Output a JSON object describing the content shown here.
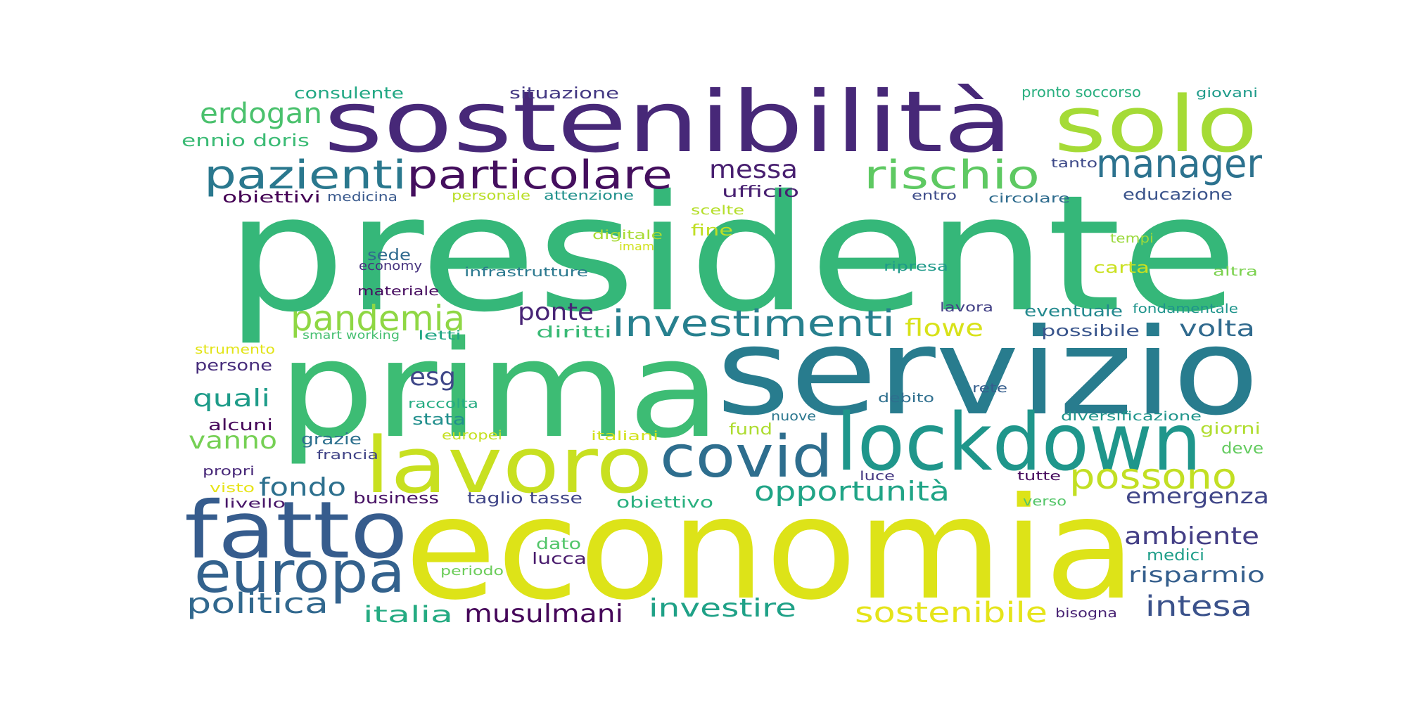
{
  "words": [
    {
      "text": "presidente",
      "color": "#35b779"
    },
    {
      "text": "prima",
      "color": "#3dbc74"
    },
    {
      "text": "economia",
      "color": "#dde318"
    },
    {
      "text": "servizio",
      "color": "#287c8e"
    },
    {
      "text": "sostenibilità",
      "color": "#472878"
    },
    {
      "text": "lockdown",
      "color": "#1f968b"
    },
    {
      "text": "lavoro",
      "color": "#c8e020"
    },
    {
      "text": "fatto",
      "color": "#365c8d"
    },
    {
      "text": "solo",
      "color": "#a5db36"
    },
    {
      "text": "europa",
      "color": "#33628d"
    },
    {
      "text": "covid",
      "color": "#2e6e8e"
    },
    {
      "text": "particolare",
      "color": "#440f5e"
    },
    {
      "text": "pazienti",
      "color": "#2a788e"
    },
    {
      "text": "rischio",
      "color": "#5ec962"
    },
    {
      "text": "manager",
      "color": "#2c728e"
    },
    {
      "text": "investimenti",
      "color": "#27808e"
    },
    {
      "text": "pandemia",
      "color": "#8fd744"
    },
    {
      "text": "possono",
      "color": "#c2df23"
    },
    {
      "text": "erdogan",
      "color": "#4ac16d"
    },
    {
      "text": "opportunità",
      "color": "#20a486"
    },
    {
      "text": "sostenibile",
      "color": "#e5e419"
    },
    {
      "text": "musulmani",
      "color": "#46075a"
    },
    {
      "text": "politica",
      "color": "#31688e"
    },
    {
      "text": "investire",
      "color": "#1fa187"
    },
    {
      "text": "intesa",
      "color": "#3b528b"
    },
    {
      "text": "italia",
      "color": "#25ab82"
    },
    {
      "text": "fondo",
      "color": "#2d708e"
    },
    {
      "text": "messa",
      "color": "#481f70"
    },
    {
      "text": "ponte",
      "color": "#482576"
    },
    {
      "text": "esg",
      "color": "#3f4788"
    },
    {
      "text": "quali",
      "color": "#1e9c89"
    },
    {
      "text": "vanno",
      "color": "#75d054"
    },
    {
      "text": "flowe",
      "color": "#d8e219"
    },
    {
      "text": "volta",
      "color": "#306a8e"
    },
    {
      "text": "emergenza",
      "color": "#404688"
    },
    {
      "text": "ambiente",
      "color": "#433e85"
    },
    {
      "text": "risparmio",
      "color": "#355f8d"
    },
    {
      "text": "consulente",
      "color": "#22a884"
    },
    {
      "text": "situazione",
      "color": "#443983"
    },
    {
      "text": "pronto soccorso",
      "color": "#29af7f"
    },
    {
      "text": "giovani",
      "color": "#1e9b8a"
    },
    {
      "text": "ennio doris",
      "color": "#3bbb75"
    },
    {
      "text": "obiettivi",
      "color": "#440154"
    },
    {
      "text": "medicina",
      "color": "#38588c"
    },
    {
      "text": "personale",
      "color": "#bade28"
    },
    {
      "text": "attenzione",
      "color": "#21918c"
    },
    {
      "text": "ufficio",
      "color": "#482071"
    },
    {
      "text": "tanto",
      "color": "#3e4a89"
    },
    {
      "text": "entro",
      "color": "#3e4c8a"
    },
    {
      "text": "circolare",
      "color": "#2f6c8e"
    },
    {
      "text": "educazione",
      "color": "#3a538b"
    },
    {
      "text": "scelte",
      "color": "#b5de2b"
    },
    {
      "text": "digitale",
      "color": "#a8db34"
    },
    {
      "text": "fine",
      "color": "#c0df25"
    },
    {
      "text": "imam",
      "color": "#d0e11c"
    },
    {
      "text": "tempi",
      "color": "#9bd93c"
    },
    {
      "text": "sede",
      "color": "#306a8e"
    },
    {
      "text": "economy",
      "color": "#46327e"
    },
    {
      "text": "infrastrutture",
      "color": "#2a788e"
    },
    {
      "text": "ripresa",
      "color": "#1f9a8a"
    },
    {
      "text": "carta",
      "color": "#cae11f"
    },
    {
      "text": "altra",
      "color": "#7cd250"
    },
    {
      "text": "materiale",
      "color": "#470d60"
    },
    {
      "text": "lavora",
      "color": "#424086"
    },
    {
      "text": "eventuale",
      "color": "#23898e"
    },
    {
      "text": "fondamentale",
      "color": "#1f948c"
    },
    {
      "text": "possibile",
      "color": "#39558c"
    },
    {
      "text": "diritti",
      "color": "#3aba76"
    },
    {
      "text": "smart working",
      "color": "#45bf70"
    },
    {
      "text": "letti",
      "color": "#22a785"
    },
    {
      "text": "strumento",
      "color": "#e2e418"
    },
    {
      "text": "persone",
      "color": "#472d7b"
    },
    {
      "text": "raccolta",
      "color": "#25ac82"
    },
    {
      "text": "debito",
      "color": "#2e6f8e"
    },
    {
      "text": "rete",
      "color": "#355e8d"
    },
    {
      "text": "stata",
      "color": "#218f8d"
    },
    {
      "text": "fund",
      "color": "#addc30"
    },
    {
      "text": "nuove",
      "color": "#2a768e"
    },
    {
      "text": "diversificazione",
      "color": "#1f958b"
    },
    {
      "text": "giorni",
      "color": "#b0dd2f"
    },
    {
      "text": "alcuni",
      "color": "#450559"
    },
    {
      "text": "grazie",
      "color": "#2d708e"
    },
    {
      "text": "europei",
      "color": "#c5e021"
    },
    {
      "text": "italiani",
      "color": "#d2e21b"
    },
    {
      "text": "francia",
      "color": "#414487"
    },
    {
      "text": "deve",
      "color": "#63cb5f"
    },
    {
      "text": "propri",
      "color": "#482979"
    },
    {
      "text": "visto",
      "color": "#e7e419"
    },
    {
      "text": "livello",
      "color": "#481769"
    },
    {
      "text": "business",
      "color": "#471164"
    },
    {
      "text": "taglio tasse",
      "color": "#404588"
    },
    {
      "text": "obiettivo",
      "color": "#2ab07f"
    },
    {
      "text": "luce",
      "color": "#453882"
    },
    {
      "text": "tutte",
      "color": "#460a5d"
    },
    {
      "text": "verso",
      "color": "#54c568"
    },
    {
      "text": "dato",
      "color": "#52c569"
    },
    {
      "text": "lucca",
      "color": "#481a6c"
    },
    {
      "text": "medici",
      "color": "#1f9e89"
    },
    {
      "text": "periodo",
      "color": "#6ccd5a"
    },
    {
      "text": "bisogna",
      "color": "#482374"
    }
  ]
}
